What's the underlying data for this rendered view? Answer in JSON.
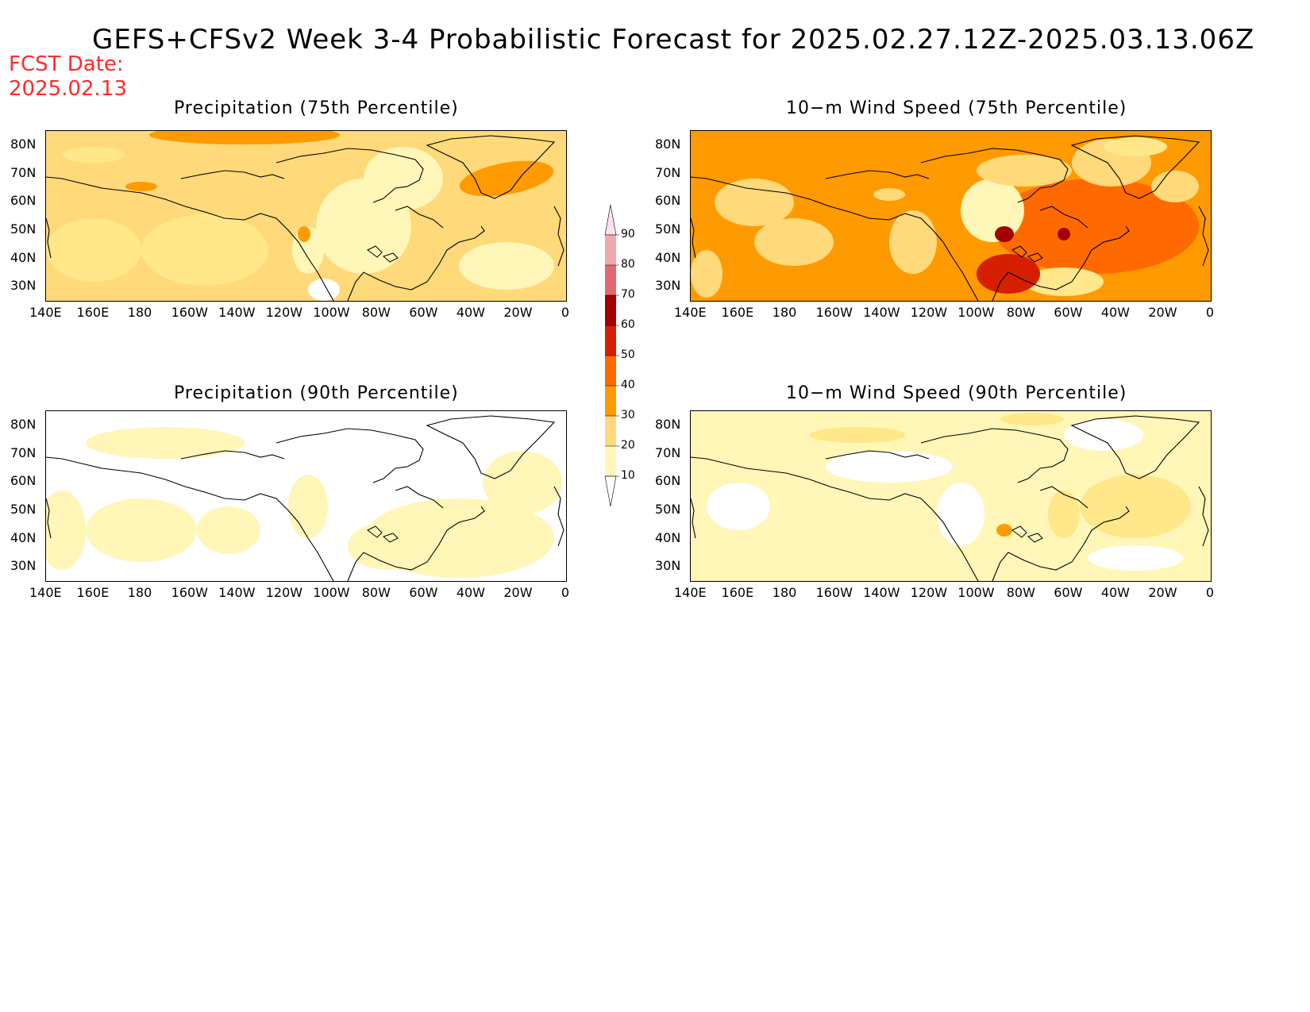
{
  "title": "GEFS+CFSv2 Week 3-4 Probabilistic Forecast for 2025.02.27.12Z-2025.03.13.06Z",
  "fcst_label": "FCST Date:",
  "fcst_date": "2025.02.13",
  "lon_ticks": [
    "140E",
    "160E",
    "180",
    "160W",
    "140W",
    "120W",
    "100W",
    "80W",
    "60W",
    "40W",
    "20W",
    "0"
  ],
  "lat_ticks": [
    "80N",
    "70N",
    "60N",
    "50N",
    "40N",
    "30N"
  ],
  "panels": [
    {
      "title": "Precipitation (75th Percentile)",
      "base_level": 20
    },
    {
      "title": "10−m Wind Speed (75th Percentile)",
      "base_level": 30
    },
    {
      "title": "Precipitation (90th Percentile)",
      "base_level": 0
    },
    {
      "title": "10−m Wind Speed (90th Percentile)",
      "base_level": 10
    }
  ],
  "colorbar": {
    "levels": [
      "90",
      "80",
      "70",
      "60",
      "50",
      "40",
      "30",
      "20",
      "10"
    ],
    "colors": [
      "#f2a8ab",
      "#e06a6f",
      "#a30000",
      "#d61f00",
      "#ff6a00",
      "#ff9a00",
      "#ffd97a",
      "#fff6b8"
    ]
  }
}
